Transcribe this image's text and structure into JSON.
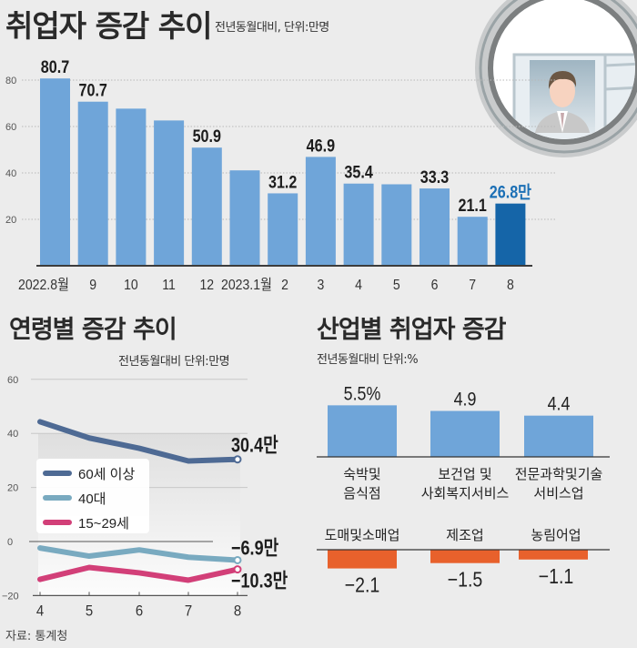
{
  "header": {
    "title": "취업자 증감 추이",
    "subtitle": "전년동월대비, 단위:만명"
  },
  "age_section": {
    "title": "연령별 증감 추이",
    "subtitle": "전년동월대비 단위:만명"
  },
  "industry_section": {
    "title": "산업별 취업자 증감",
    "subtitle": "전년동월대비 단위:%"
  },
  "illustration": {
    "icon": "resume-magnifier-icon"
  },
  "source": "자료: 통계청",
  "colors": {
    "bar": "#6fa5d9",
    "bar_highlight": "#1565a8",
    "highlight_label": "#1b6fb5",
    "line_60plus": "#4e6a94",
    "line_40s": "#79aac0",
    "line_15_29": "#d23f78",
    "negative_bar": "#e8612c"
  },
  "chart_data": [
    {
      "type": "bar",
      "title": "취업자 증감 추이",
      "subtitle": "전년동월대비, 단위:만명",
      "categories": [
        "2022.8월",
        "9",
        "10",
        "11",
        "12",
        "2023.1월",
        "2",
        "3",
        "4",
        "5",
        "6",
        "7",
        "8"
      ],
      "values": [
        80.7,
        70.7,
        67.7,
        62.6,
        50.9,
        41.1,
        31.2,
        46.9,
        35.4,
        35.1,
        33.3,
        21.1,
        26.8
      ],
      "data_labels": [
        "80.7",
        "70.7",
        "",
        "",
        "50.9",
        "",
        "31.2",
        "46.9",
        "35.4",
        "",
        "33.3",
        "21.1",
        "26.8만"
      ],
      "highlight_index": 12,
      "yticks": [
        20,
        40,
        60,
        80
      ],
      "ylim": [
        0,
        85
      ],
      "grid": true
    },
    {
      "type": "line",
      "title": "연령별 증감 추이",
      "subtitle": "전년동월대비 단위:만명",
      "x": [
        "4",
        "5",
        "6",
        "7",
        "8"
      ],
      "series": [
        {
          "name": "60세 이상",
          "values": [
            44.3,
            38.3,
            34.5,
            29.8,
            30.4
          ],
          "end_label": "30.4만"
        },
        {
          "name": "40대",
          "values": [
            -2.4,
            -5.4,
            -3.1,
            -5.8,
            -6.9
          ],
          "end_label": "−6.9만"
        },
        {
          "name": "15~29세",
          "values": [
            -14.0,
            -9.6,
            -11.6,
            -14.3,
            -10.3
          ],
          "end_label": "−10.3만"
        }
      ],
      "yticks": [
        -20,
        0,
        20,
        40,
        60
      ],
      "ylim": [
        -20,
        60
      ],
      "legend": "middle-left",
      "grid": true
    },
    {
      "type": "bar",
      "title": "산업별 취업자 증감",
      "subtitle": "전년동월대비 단위:%",
      "positive": [
        {
          "category": [
            "숙박및",
            "음식점"
          ],
          "value": 5.5,
          "label": "5.5%"
        },
        {
          "category": [
            "보건업 및",
            "사회복지서비스"
          ],
          "value": 4.9,
          "label": "4.9"
        },
        {
          "category": [
            "전문과학및기술",
            "서비스업"
          ],
          "value": 4.4,
          "label": "4.4"
        }
      ],
      "negative": [
        {
          "category": "도매및소매업",
          "value": -2.1,
          "label": "−2.1"
        },
        {
          "category": "제조업",
          "value": -1.5,
          "label": "−1.5"
        },
        {
          "category": "농림어업",
          "value": -1.1,
          "label": "−1.1"
        }
      ]
    }
  ]
}
